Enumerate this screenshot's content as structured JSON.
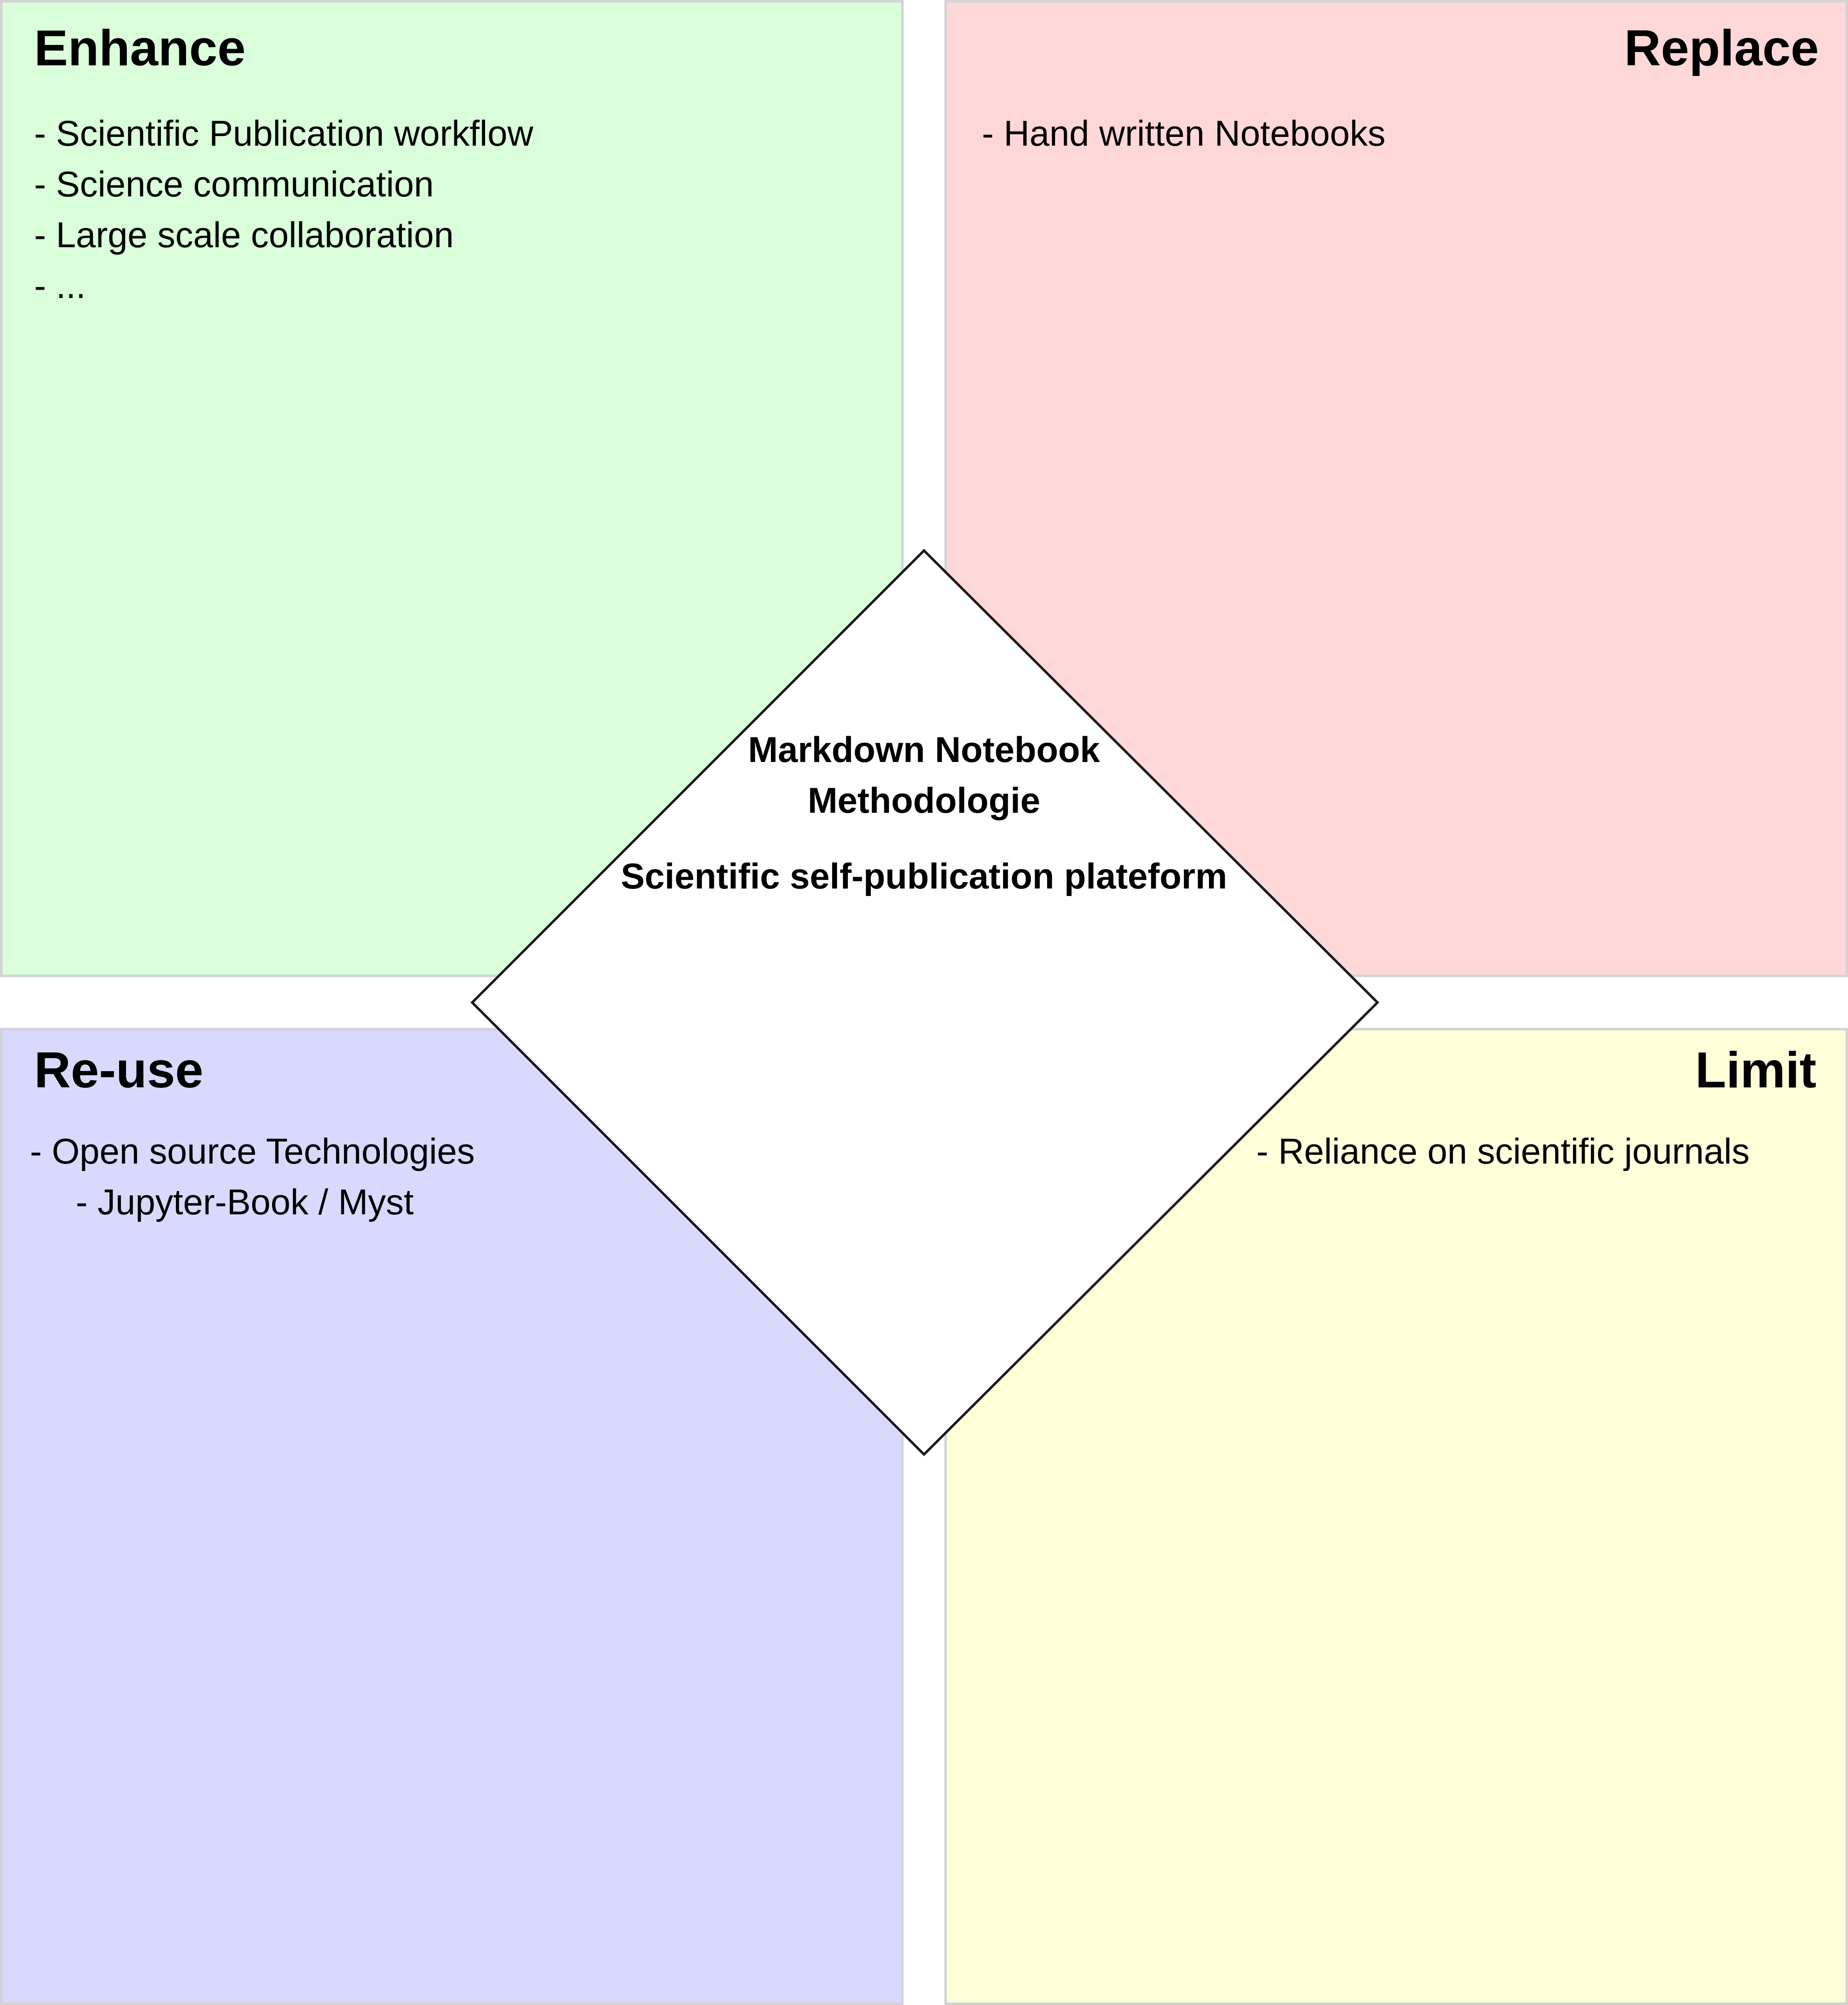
{
  "quadrants": {
    "enhance": {
      "title": "Enhance",
      "items": [
        "- Scientific Publication workflow",
        "- Science communication",
        "- Large scale collaboration",
        "- ..."
      ],
      "color": "#d9fed9"
    },
    "replace": {
      "title": "Replace",
      "items": [
        "- Hand written Notebooks"
      ],
      "color": "#fed8d9"
    },
    "reuse": {
      "title": "Re-use",
      "items": [
        "- Open source Technologies",
        "- Jupyter-Book / Myst"
      ],
      "color": "#d9d9fe"
    },
    "limit": {
      "title": "Limit",
      "items": [
        "- Reliance on scientific journals"
      ],
      "color": "#fefed9"
    }
  },
  "center": {
    "line1": "Markdown Notebook",
    "line2": "Methodologie",
    "line3": "Scientific self-publication plateform"
  }
}
